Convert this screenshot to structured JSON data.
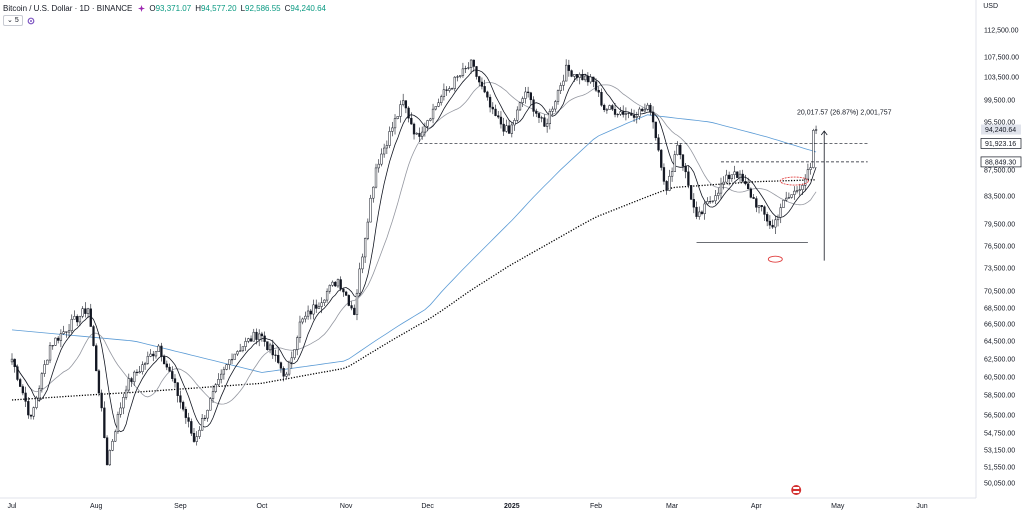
{
  "header": {
    "symbol": "Bitcoin / U.S. Dollar · 1D · BINANCE",
    "ohlc": [
      {
        "k": "O",
        "v": "93,371.07"
      },
      {
        "k": "H",
        "v": "94,577.20"
      },
      {
        "k": "L",
        "v": "92,586.55"
      },
      {
        "k": "C",
        "v": "94,240.64"
      }
    ],
    "indicator_count": "5",
    "currency": "USD"
  },
  "colors": {
    "up": "#089981",
    "down": "#f23645",
    "candle": "#131722",
    "ma_long": "#000000",
    "ma_blue": "#5b9bd5",
    "ma_fast": "#131722",
    "ma_slow": "#9598a1",
    "circle": "#e04040"
  },
  "chart_data": {
    "type": "candlestick",
    "title": "Bitcoin / U.S. Dollar · 1D · BINANCE",
    "x_ticks": [
      {
        "label": "Jul",
        "date": "2024-07-01"
      },
      {
        "label": "Aug",
        "date": "2024-08-01"
      },
      {
        "label": "Sep",
        "date": "2024-09-01"
      },
      {
        "label": "Oct",
        "date": "2024-10-01"
      },
      {
        "label": "Nov",
        "date": "2024-11-01"
      },
      {
        "label": "Dec",
        "date": "2024-12-01"
      },
      {
        "label": "2025",
        "date": "2025-01-01",
        "bold": true
      },
      {
        "label": "Feb",
        "date": "2025-02-01"
      },
      {
        "label": "Mar",
        "date": "2025-03-01"
      },
      {
        "label": "Apr",
        "date": "2025-04-01"
      },
      {
        "label": "May",
        "date": "2025-05-01"
      },
      {
        "label": "Jun",
        "date": "2025-06-01"
      }
    ],
    "y_ticks": [
      "112,500.00",
      "107,500.00",
      "103,500.00",
      "99,500.00",
      "95,500.00",
      "87,500.00",
      "83,500.00",
      "79,500.00",
      "76,500.00",
      "73,500.00",
      "70,500.00",
      "68,500.00",
      "66,500.00",
      "64,500.00",
      "62,500.00",
      "60,500.00",
      "58,500.00",
      "56,500.00",
      "54,750.00",
      "53,150.00",
      "51,550.00",
      "50,050.00"
    ],
    "price_labels": [
      {
        "value": 94240.64,
        "text": "94,240.64",
        "style": "current"
      },
      {
        "value": 91923.16,
        "text": "91,923.16",
        "style": "line"
      },
      {
        "value": 88849.3,
        "text": "88,849.30",
        "style": "line"
      }
    ],
    "key_points": [
      {
        "date": "2024-07-01",
        "price": 62500
      },
      {
        "date": "2024-07-08",
        "price": 56000
      },
      {
        "date": "2024-07-15",
        "price": 64000
      },
      {
        "date": "2024-07-29",
        "price": 68500
      },
      {
        "date": "2024-08-05",
        "price": 52000
      },
      {
        "date": "2024-08-12",
        "price": 59500
      },
      {
        "date": "2024-08-24",
        "price": 64000
      },
      {
        "date": "2024-09-06",
        "price": 54000
      },
      {
        "date": "2024-09-20",
        "price": 63000
      },
      {
        "date": "2024-09-30",
        "price": 65500
      },
      {
        "date": "2024-10-10",
        "price": 60500
      },
      {
        "date": "2024-10-15",
        "price": 66500
      },
      {
        "date": "2024-10-29",
        "price": 72000
      },
      {
        "date": "2024-11-04",
        "price": 68000
      },
      {
        "date": "2024-11-12",
        "price": 88000
      },
      {
        "date": "2024-11-22",
        "price": 99000
      },
      {
        "date": "2024-11-27",
        "price": 93000
      },
      {
        "date": "2024-12-06",
        "price": 100000
      },
      {
        "date": "2024-12-17",
        "price": 106000
      },
      {
        "date": "2024-12-25",
        "price": 97000
      },
      {
        "date": "2024-12-31",
        "price": 93500
      },
      {
        "date": "2025-01-06",
        "price": 101000
      },
      {
        "date": "2025-01-13",
        "price": 94500
      },
      {
        "date": "2025-01-21",
        "price": 105000
      },
      {
        "date": "2025-01-31",
        "price": 102500
      },
      {
        "date": "2025-02-04",
        "price": 98000
      },
      {
        "date": "2025-02-14",
        "price": 97000
      },
      {
        "date": "2025-02-21",
        "price": 98000
      },
      {
        "date": "2025-02-27",
        "price": 84000
      },
      {
        "date": "2025-03-03",
        "price": 92000
      },
      {
        "date": "2025-03-10",
        "price": 80000
      },
      {
        "date": "2025-03-17",
        "price": 84000
      },
      {
        "date": "2025-03-24",
        "price": 87500
      },
      {
        "date": "2025-03-31",
        "price": 83000
      },
      {
        "date": "2025-04-07",
        "price": 79000
      },
      {
        "date": "2025-04-10",
        "price": 82000
      },
      {
        "date": "2025-04-16",
        "price": 84500
      },
      {
        "date": "2025-04-21",
        "price": 87500
      },
      {
        "date": "2025-04-22",
        "price": 93400
      },
      {
        "date": "2025-04-23",
        "price": 94240
      }
    ],
    "ma_long": [
      {
        "date": "2024-07-01",
        "price": 58000
      },
      {
        "date": "2024-08-15",
        "price": 58800
      },
      {
        "date": "2024-10-01",
        "price": 59800
      },
      {
        "date": "2024-11-01",
        "price": 61500
      },
      {
        "date": "2024-12-01",
        "price": 67000
      },
      {
        "date": "2025-01-01",
        "price": 74000
      },
      {
        "date": "2025-02-01",
        "price": 80500
      },
      {
        "date": "2025-03-01",
        "price": 84800
      },
      {
        "date": "2025-04-01",
        "price": 85700
      },
      {
        "date": "2025-04-23",
        "price": 86000
      }
    ],
    "ma_blue": [
      {
        "date": "2024-07-01",
        "price": 65800
      },
      {
        "date": "2024-08-15",
        "price": 64500
      },
      {
        "date": "2024-10-01",
        "price": 61000
      },
      {
        "date": "2024-11-01",
        "price": 62300
      },
      {
        "date": "2024-12-01",
        "price": 68500
      },
      {
        "date": "2025-01-01",
        "price": 80000
      },
      {
        "date": "2025-02-01",
        "price": 93000
      },
      {
        "date": "2025-02-20",
        "price": 96800
      },
      {
        "date": "2025-03-15",
        "price": 95500
      },
      {
        "date": "2025-04-05",
        "price": 93000
      },
      {
        "date": "2025-04-23",
        "price": 90500
      }
    ],
    "annotations": {
      "measure_text": "20,017.57 (26.87%) 2,001,757",
      "support_line": {
        "from": "2025-03-10",
        "to": "2025-04-20",
        "price": 77000
      },
      "resistance_line": {
        "from": "2024-11-28",
        "to": "2025-05-12",
        "price": 91923.16
      },
      "range_line": {
        "from": "2025-03-19",
        "to": "2025-05-12",
        "price": 88849.3
      },
      "arrow": {
        "date": "2025-04-26",
        "from": 74500,
        "to": 94000
      },
      "circle_low": {
        "date": "2025-04-08",
        "price": 74700
      },
      "circle_top": {
        "date": "2025-04-15",
        "price": 85800
      }
    }
  }
}
